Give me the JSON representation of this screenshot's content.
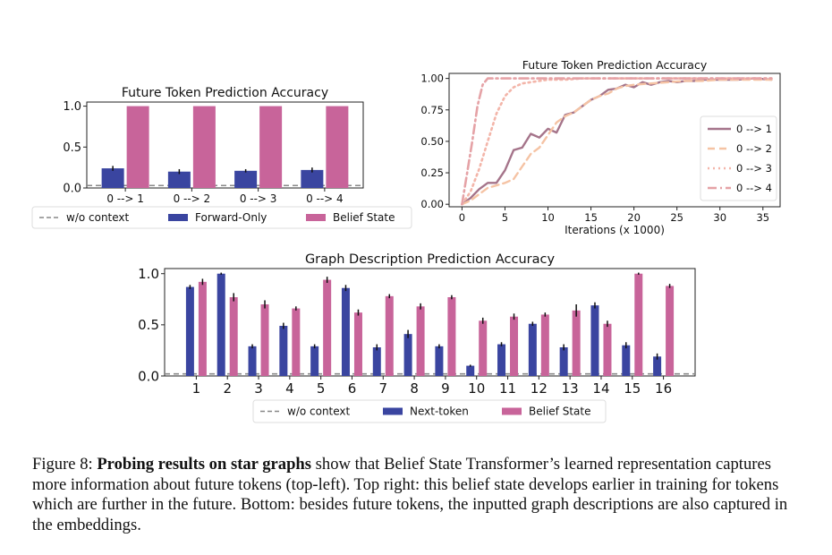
{
  "caption": {
    "prefix": "Figure 8: ",
    "bold": "Probing results on star graphs",
    "rest": " show that Belief State Transformer’s learned representation captures more information about future tokens (top-left). Top right: this belief state develops earlier in training for tokens which are further in the future. Bottom: besides future tokens, the inputted graph descriptions are also captured in the embeddings."
  },
  "colors": {
    "forward": "#3a45a0",
    "belief": "#c8649a",
    "baseline": "#888888",
    "line1": "#a5748a",
    "line2": "#f5c3a4",
    "line3": "#f3b5a9",
    "line4": "#e5a2a6"
  },
  "chart_data": [
    {
      "id": "top-left",
      "type": "bar",
      "title": "Future Token Prediction Accuracy",
      "categories": [
        "0 --> 1",
        "0 --> 2",
        "0 --> 3",
        "0 --> 4"
      ],
      "series": [
        {
          "name": "Forward-Only",
          "values": [
            0.24,
            0.2,
            0.21,
            0.22
          ],
          "errors": [
            0.03,
            0.03,
            0.02,
            0.03
          ]
        },
        {
          "name": "Belief State",
          "values": [
            1.0,
            1.0,
            1.0,
            1.0
          ],
          "errors": [
            0,
            0,
            0,
            0
          ]
        }
      ],
      "baseline": {
        "name": "w/o context",
        "value": 0.03
      },
      "yticks": [
        "0.0",
        "0.5",
        "1.0"
      ],
      "ylim": [
        0,
        1.05
      ]
    },
    {
      "id": "top-right",
      "type": "line",
      "title": "Future Token Prediction Accuracy",
      "xlabel": "Iterations (x 1000)",
      "xticks": [
        "0",
        "5",
        "10",
        "15",
        "20",
        "25",
        "30",
        "35"
      ],
      "yticks": [
        "0.00",
        "0.25",
        "0.50",
        "0.75",
        "1.00"
      ],
      "xlim": [
        -1.5,
        37
      ],
      "ylim": [
        -0.02,
        1.04
      ],
      "legend": "right",
      "series": [
        {
          "name": "0 --> 1",
          "x": [
            0,
            1,
            2,
            3,
            4,
            5,
            6,
            7,
            8,
            9,
            10,
            11,
            12,
            13,
            14,
            15,
            16,
            17,
            18,
            19,
            20,
            21,
            22,
            23,
            24,
            25,
            26,
            27,
            28,
            29,
            30,
            32,
            34,
            36
          ],
          "y": [
            0.0,
            0.05,
            0.12,
            0.17,
            0.17,
            0.27,
            0.43,
            0.45,
            0.56,
            0.53,
            0.6,
            0.57,
            0.71,
            0.73,
            0.78,
            0.83,
            0.86,
            0.91,
            0.92,
            0.95,
            0.93,
            0.97,
            0.95,
            0.97,
            0.98,
            0.97,
            0.98,
            0.98,
            0.99,
            0.99,
            0.99,
            0.99,
            1.0,
            0.99
          ]
        },
        {
          "name": "0 --> 2",
          "x": [
            0,
            1,
            2,
            3,
            4,
            5,
            6,
            7,
            8,
            9,
            10,
            11,
            12,
            13,
            14,
            15,
            16,
            17,
            18,
            19,
            20,
            22,
            24,
            26,
            28,
            30,
            32,
            34,
            36
          ],
          "y": [
            0.0,
            0.03,
            0.08,
            0.13,
            0.15,
            0.17,
            0.2,
            0.3,
            0.4,
            0.45,
            0.55,
            0.65,
            0.7,
            0.73,
            0.78,
            0.83,
            0.86,
            0.88,
            0.92,
            0.94,
            0.95,
            0.96,
            0.97,
            0.98,
            0.98,
            0.99,
            0.99,
            0.99,
            0.99
          ]
        },
        {
          "name": "0 --> 3",
          "x": [
            0,
            1,
            2,
            3,
            4,
            5,
            6,
            7,
            8,
            9,
            10,
            12,
            14,
            16,
            18,
            20,
            22,
            24,
            26,
            28,
            30,
            32,
            34,
            36
          ],
          "y": [
            0.0,
            0.1,
            0.28,
            0.5,
            0.72,
            0.86,
            0.93,
            0.96,
            0.97,
            0.98,
            0.99,
            0.99,
            1.0,
            1.0,
            1.0,
            1.0,
            1.0,
            1.0,
            1.0,
            1.0,
            1.0,
            1.0,
            1.0,
            1.0
          ]
        },
        {
          "name": "0 --> 4",
          "x": [
            0,
            0.6,
            1.2,
            1.8,
            2.4,
            3,
            4,
            5,
            6,
            8,
            10,
            12,
            14,
            16,
            18,
            20,
            22,
            24,
            26,
            28,
            30,
            32,
            34,
            36
          ],
          "y": [
            0.0,
            0.25,
            0.5,
            0.78,
            0.95,
            1.0,
            1.0,
            1.0,
            1.0,
            1.0,
            1.0,
            1.0,
            1.0,
            1.0,
            1.0,
            1.0,
            1.0,
            1.0,
            1.0,
            1.0,
            1.0,
            1.0,
            1.0,
            1.0
          ]
        }
      ]
    },
    {
      "id": "bottom",
      "type": "bar",
      "title": "Graph Description Prediction Accuracy",
      "categories": [
        "1",
        "2",
        "3",
        "4",
        "5",
        "6",
        "7",
        "8",
        "9",
        "10",
        "11",
        "12",
        "13",
        "14",
        "15",
        "16"
      ],
      "series": [
        {
          "name": "Next-token",
          "values": [
            0.87,
            1.0,
            0.29,
            0.49,
            0.29,
            0.86,
            0.28,
            0.41,
            0.29,
            0.1,
            0.31,
            0.51,
            0.28,
            0.69,
            0.3,
            0.19
          ],
          "errors": [
            0.02,
            0.01,
            0.02,
            0.03,
            0.02,
            0.03,
            0.03,
            0.04,
            0.02,
            0.01,
            0.02,
            0.02,
            0.03,
            0.03,
            0.03,
            0.03
          ]
        },
        {
          "name": "Belief State",
          "values": [
            0.92,
            0.77,
            0.7,
            0.66,
            0.94,
            0.62,
            0.78,
            0.68,
            0.77,
            0.54,
            0.58,
            0.6,
            0.64,
            0.51,
            1.0,
            0.88
          ],
          "errors": [
            0.03,
            0.04,
            0.04,
            0.02,
            0.03,
            0.03,
            0.02,
            0.03,
            0.02,
            0.03,
            0.03,
            0.02,
            0.06,
            0.03,
            0.01,
            0.02
          ]
        }
      ],
      "baseline": {
        "name": "w/o context",
        "value": 0.02
      },
      "yticks": [
        "0.0",
        "0.5",
        "1.0"
      ],
      "ylim": [
        0,
        1.05
      ]
    }
  ]
}
